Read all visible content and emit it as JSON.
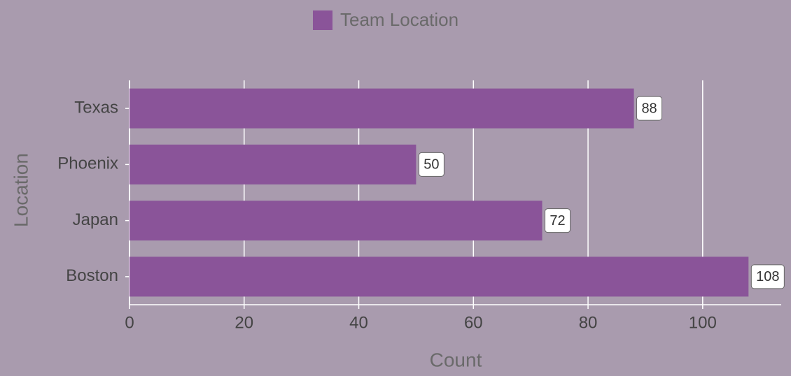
{
  "chart_data": {
    "type": "hbar",
    "x_label": "Count",
    "y_label": "Location",
    "categories": [
      "Texas",
      "Phoenix",
      "Japan",
      "Boston"
    ],
    "series": [
      {
        "name": "Team Location",
        "color": "#8a5499",
        "values": [
          88,
          50,
          72,
          108
        ]
      }
    ],
    "xlim": [
      0,
      113.7
    ],
    "xticks": [
      0,
      20,
      40,
      60,
      80,
      100
    ],
    "grid": true,
    "legend": "top",
    "data_labels": true
  }
}
